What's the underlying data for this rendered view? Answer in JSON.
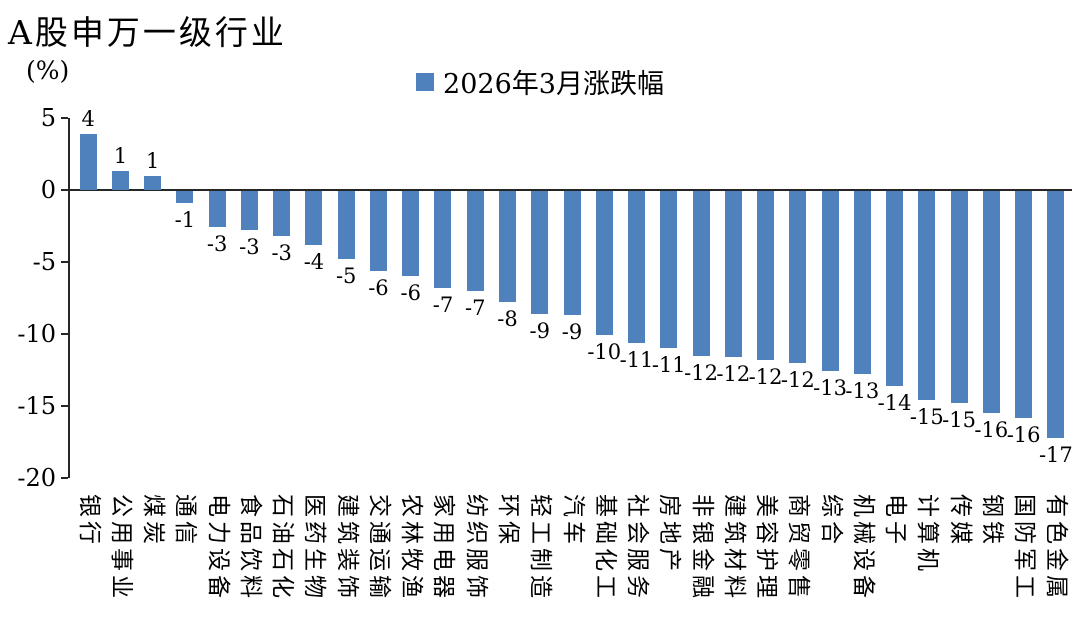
{
  "title": "A股申万一级行业",
  "axis_unit": "(%)",
  "legend": {
    "label": "2026年3月涨跌幅",
    "swatch_color": "#4F81BD"
  },
  "chart_data": {
    "type": "bar",
    "title": "A股申万一级行业",
    "ylabel": "(%)",
    "legend": [
      "2026年3月涨跌幅"
    ],
    "legend_position": "top",
    "bar_color": "#4F81BD",
    "ylim": [
      -20,
      5
    ],
    "yticks": [
      5,
      0,
      -5,
      -10,
      -15,
      -20
    ],
    "grid": false,
    "categories": [
      "银行",
      "公用事业",
      "煤炭",
      "通信",
      "电力设备",
      "食品饮料",
      "石油石化",
      "医药生物",
      "建筑装饰",
      "交通运输",
      "农林牧渔",
      "家用电器",
      "纺织服饰",
      "环保",
      "轻工制造",
      "汽车",
      "基础化工",
      "社会服务",
      "房地产",
      "非银金融",
      "建筑材料",
      "美容护理",
      "商贸零售",
      "综合",
      "机械设备",
      "电子",
      "计算机",
      "传媒",
      "钢铁",
      "国防军工",
      "有色金属"
    ],
    "values": [
      3.9,
      1.3,
      1.0,
      -0.9,
      -2.6,
      -2.8,
      -3.2,
      -3.8,
      -4.8,
      -5.6,
      -6.0,
      -6.8,
      -7.0,
      -7.8,
      -8.6,
      -8.7,
      -10.1,
      -10.6,
      -11.0,
      -11.5,
      -11.6,
      -11.8,
      -12.0,
      -12.6,
      -12.8,
      -13.6,
      -14.6,
      -14.8,
      -15.5,
      -15.8,
      -17.2
    ],
    "data_labels": [
      "4",
      "1",
      "1",
      "-1",
      "-3",
      "-3",
      "-3",
      "-4",
      "-5",
      "-6",
      "-6",
      "-7",
      "-7",
      "-8",
      "-9",
      "-9",
      "-10",
      "-11",
      "-11",
      "-12",
      "-12",
      "-12",
      "-12",
      "-13",
      "-13",
      "-14",
      "-15",
      "-15",
      "-16",
      "-16",
      "-17"
    ]
  }
}
